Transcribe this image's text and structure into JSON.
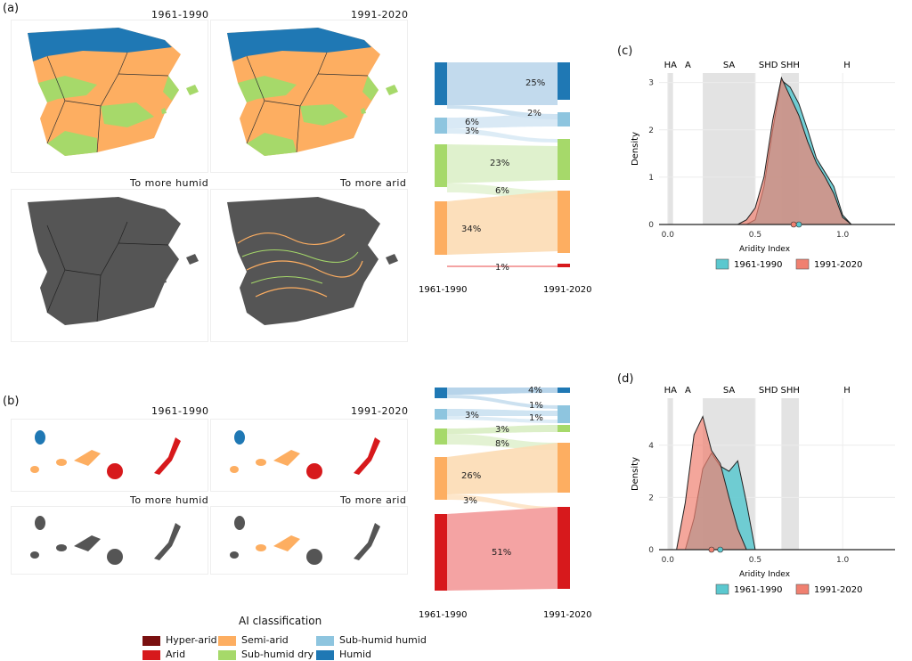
{
  "panels": {
    "a": {
      "label": "(a)",
      "map_titles": [
        "1961-1990",
        "1991-2020",
        "To more humid",
        "To more arid"
      ]
    },
    "b": {
      "label": "(b)",
      "map_titles": [
        "1961-1990",
        "1991-2020",
        "To more humid",
        "To more arid"
      ]
    },
    "c": {
      "label": "(c)"
    },
    "d": {
      "label": "(d)"
    }
  },
  "legend": {
    "title": "AI classification",
    "items": [
      {
        "label": "Hyper-arid",
        "color": "#7a1010"
      },
      {
        "label": "Arid",
        "color": "#d7191c"
      },
      {
        "label": "Semi-arid",
        "color": "#fdae61"
      },
      {
        "label": "Sub-humid dry",
        "color": "#a6d96a"
      },
      {
        "label": "Sub-humid humid",
        "color": "#8ec5df"
      },
      {
        "label": "Humid",
        "color": "#1f78b4"
      }
    ]
  },
  "colors": {
    "map_fill": "#555555",
    "p1961": "#5bc8cf",
    "p1991": "#f08070",
    "band": "#e3e3e3"
  },
  "chart_data": [
    {
      "type": "sankey",
      "panel": "a",
      "left_label": "1961-1990",
      "right_label": "1991-2020",
      "flow_labels": [
        "25%",
        "2%",
        "6%",
        "3%",
        "23%",
        "6%",
        "34%",
        "1%"
      ]
    },
    {
      "type": "sankey",
      "panel": "b",
      "left_label": "1961-1990",
      "right_label": "1991-2020",
      "flow_labels": [
        "4%",
        "1%",
        "3%",
        "1%",
        "3%",
        "8%",
        "26%",
        "3%",
        "51%"
      ]
    },
    {
      "type": "area",
      "panel": "c",
      "xlabel": "Aridity Index",
      "ylabel": "Density",
      "xlim": [
        -0.05,
        1.3
      ],
      "ylim": [
        0,
        3.2
      ],
      "xticks": [
        0.0,
        0.5,
        1.0
      ],
      "xtick_labels": [
        "0.0",
        "0.5",
        "1.0"
      ],
      "yticks": [
        0,
        1,
        2,
        3
      ],
      "zones": [
        {
          "label": "HA",
          "from": 0.0,
          "to": 0.03,
          "shaded": true
        },
        {
          "label": "A",
          "from": 0.03,
          "to": 0.2,
          "shaded": false
        },
        {
          "label": "SA",
          "from": 0.2,
          "to": 0.5,
          "shaded": true
        },
        {
          "label": "SHD",
          "from": 0.5,
          "to": 0.65,
          "shaded": false
        },
        {
          "label": "SHH",
          "from": 0.65,
          "to": 0.75,
          "shaded": true
        },
        {
          "label": "H",
          "from": 0.75,
          "to": 1.3,
          "shaded": false
        }
      ],
      "series": [
        {
          "name": "1961-1990",
          "x": [
            0.45,
            0.5,
            0.55,
            0.6,
            0.65,
            0.7,
            0.75,
            0.8,
            0.85,
            0.9,
            0.95,
            1.0,
            1.05
          ],
          "y": [
            0.0,
            0.1,
            0.8,
            2.0,
            3.05,
            2.9,
            2.55,
            2.0,
            1.4,
            1.1,
            0.8,
            0.2,
            0.0
          ]
        },
        {
          "name": "1991-2020",
          "x": [
            0.4,
            0.45,
            0.5,
            0.55,
            0.6,
            0.65,
            0.7,
            0.75,
            0.8,
            0.85,
            0.9,
            0.95,
            1.0,
            1.05
          ],
          "y": [
            0.0,
            0.1,
            0.35,
            1.0,
            2.2,
            3.1,
            2.7,
            2.3,
            1.75,
            1.3,
            1.0,
            0.65,
            0.15,
            0.0
          ]
        }
      ],
      "means": [
        0.75,
        0.72
      ]
    },
    {
      "type": "area",
      "panel": "d",
      "xlabel": "Aridity Index",
      "ylabel": "Density",
      "xlim": [
        -0.05,
        1.3
      ],
      "ylim": [
        0,
        5.8
      ],
      "xticks": [
        0.0,
        0.5,
        1.0
      ],
      "xtick_labels": [
        "0.0",
        "0.5",
        "1.0"
      ],
      "yticks": [
        0,
        2,
        4
      ],
      "zones": [
        {
          "label": "HA",
          "from": 0.0,
          "to": 0.03,
          "shaded": true
        },
        {
          "label": "A",
          "from": 0.03,
          "to": 0.2,
          "shaded": false
        },
        {
          "label": "SA",
          "from": 0.2,
          "to": 0.5,
          "shaded": true
        },
        {
          "label": "SHD",
          "from": 0.5,
          "to": 0.65,
          "shaded": false
        },
        {
          "label": "SHH",
          "from": 0.65,
          "to": 0.75,
          "shaded": true
        },
        {
          "label": "H",
          "from": 0.75,
          "to": 1.3,
          "shaded": false
        }
      ],
      "series": [
        {
          "name": "1961-1990",
          "x": [
            0.1,
            0.15,
            0.2,
            0.25,
            0.3,
            0.35,
            0.4,
            0.45,
            0.5
          ],
          "y": [
            0.0,
            1.2,
            3.1,
            3.7,
            3.2,
            3.0,
            3.4,
            1.8,
            0.0
          ]
        },
        {
          "name": "1991-2020",
          "x": [
            0.05,
            0.1,
            0.15,
            0.2,
            0.25,
            0.3,
            0.35,
            0.4,
            0.45
          ],
          "y": [
            0.0,
            1.8,
            4.4,
            5.1,
            3.8,
            3.3,
            2.0,
            0.8,
            0.0
          ]
        }
      ],
      "means": [
        0.3,
        0.25
      ]
    }
  ]
}
